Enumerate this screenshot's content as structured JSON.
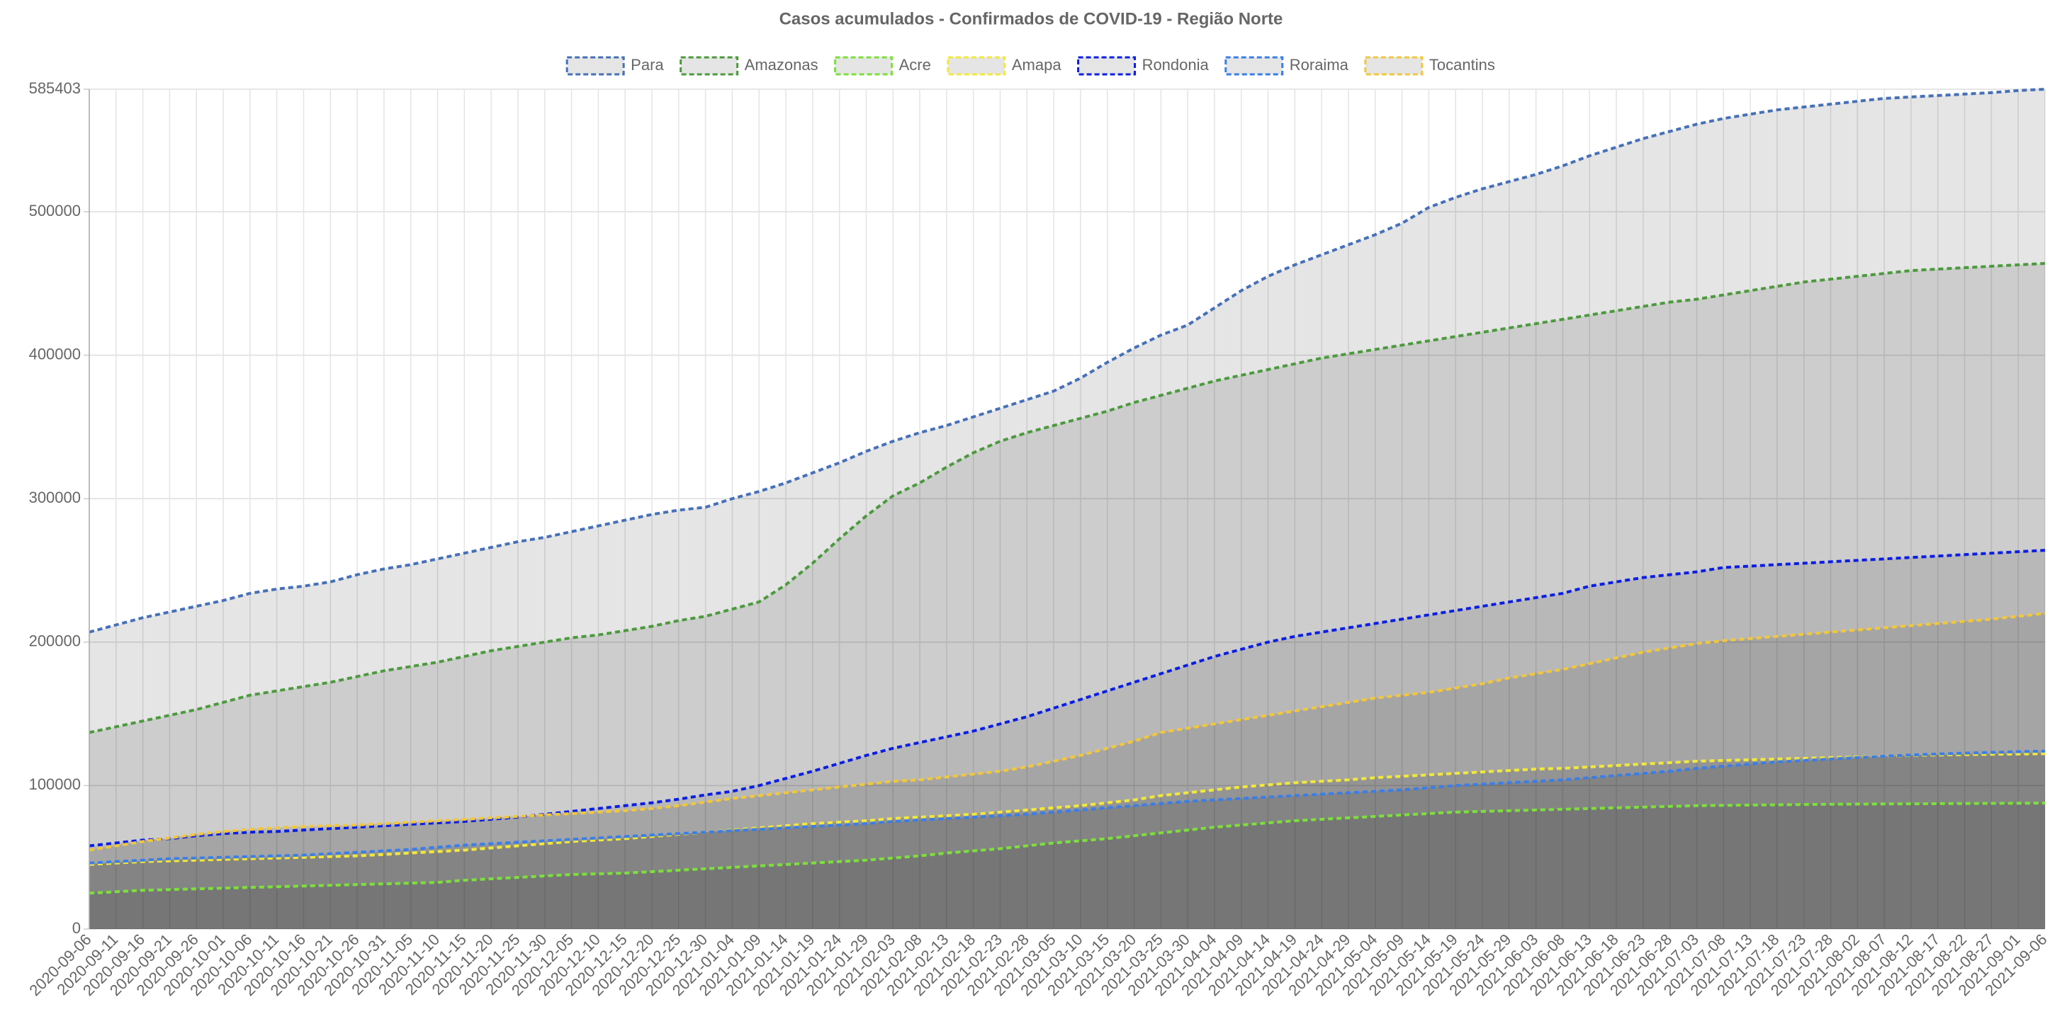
{
  "chart_data": {
    "type": "area",
    "title": "Casos acumulados - Confirmados de COVID-19 - Região Norte",
    "categories": [
      "2020-09-06",
      "2020-09-11",
      "2020-09-16",
      "2020-09-21",
      "2020-09-26",
      "2020-10-01",
      "2020-10-06",
      "2020-10-11",
      "2020-10-16",
      "2020-10-21",
      "2020-10-26",
      "2020-10-31",
      "2020-11-05",
      "2020-11-10",
      "2020-11-15",
      "2020-11-20",
      "2020-11-25",
      "2020-11-30",
      "2020-12-05",
      "2020-12-10",
      "2020-12-15",
      "2020-12-20",
      "2020-12-25",
      "2020-12-30",
      "2021-01-04",
      "2021-01-09",
      "2021-01-14",
      "2021-01-19",
      "2021-01-24",
      "2021-01-29",
      "2021-02-03",
      "2021-02-08",
      "2021-02-13",
      "2021-02-18",
      "2021-02-23",
      "2021-02-28",
      "2021-03-05",
      "2021-03-10",
      "2021-03-15",
      "2021-03-20",
      "2021-03-25",
      "2021-03-30",
      "2021-04-04",
      "2021-04-09",
      "2021-04-14",
      "2021-04-19",
      "2021-04-24",
      "2021-04-29",
      "2021-05-04",
      "2021-05-09",
      "2021-05-14",
      "2021-05-19",
      "2021-05-24",
      "2021-05-29",
      "2021-06-03",
      "2021-06-08",
      "2021-06-13",
      "2021-06-18",
      "2021-06-23",
      "2021-06-28",
      "2021-07-03",
      "2021-07-08",
      "2021-07-13",
      "2021-07-18",
      "2021-07-23",
      "2021-07-28",
      "2021-08-02",
      "2021-08-07",
      "2021-08-12",
      "2021-08-17",
      "2021-08-22",
      "2021-08-27",
      "2021-09-01",
      "2021-09-06"
    ],
    "series": [
      {
        "name": "Para",
        "color": "#4670b8",
        "fill": "rgba(0,0,0,0.1)",
        "values": [
          207000,
          212000,
          217000,
          221000,
          225000,
          229000,
          234000,
          237000,
          239000,
          242000,
          247000,
          251000,
          254000,
          258000,
          262000,
          266000,
          270000,
          273000,
          277000,
          281000,
          285000,
          289000,
          292000,
          294000,
          300000,
          305000,
          311000,
          318000,
          325000,
          333000,
          340000,
          346000,
          351000,
          357000,
          363000,
          369000,
          375000,
          384000,
          395000,
          405000,
          414000,
          421000,
          433000,
          445000,
          455000,
          463000,
          470000,
          477000,
          484000,
          492000,
          503000,
          510000,
          516000,
          521000,
          526000,
          532000,
          539000,
          545000,
          551000,
          556000,
          561000,
          565000,
          568000,
          571000,
          573000,
          575000,
          577000,
          579000,
          580000,
          581000,
          582000,
          583000,
          584500,
          585403
        ]
      },
      {
        "name": "Amazonas",
        "color": "#4b9a3c",
        "fill": "rgba(0,0,0,0.1)",
        "values": [
          137000,
          141000,
          145000,
          149000,
          153000,
          158000,
          163000,
          166000,
          169000,
          172000,
          176000,
          180000,
          183000,
          186000,
          190000,
          194000,
          197000,
          200000,
          203000,
          205000,
          208000,
          211000,
          215000,
          218000,
          223000,
          228000,
          240000,
          255000,
          272000,
          288000,
          302000,
          311000,
          322000,
          332000,
          340000,
          346000,
          351000,
          356000,
          361000,
          367000,
          372000,
          377000,
          382000,
          386000,
          390000,
          394000,
          398000,
          401000,
          404000,
          407000,
          410000,
          413000,
          416000,
          419000,
          422000,
          425000,
          428000,
          431000,
          434000,
          437000,
          439000,
          442000,
          445000,
          448000,
          451000,
          453000,
          455000,
          457000,
          459000,
          460000,
          461000,
          462000,
          463000,
          464000
        ]
      },
      {
        "name": "Acre",
        "color": "#7ce03a",
        "fill": "rgba(0,0,0,0.1)",
        "values": [
          25000,
          26000,
          27000,
          27500,
          28000,
          28500,
          29000,
          29500,
          30000,
          30500,
          31000,
          31500,
          32000,
          32500,
          34000,
          35000,
          36000,
          37000,
          38000,
          38500,
          39000,
          40000,
          41000,
          42000,
          43000,
          44000,
          45000,
          46000,
          47000,
          48000,
          49500,
          51000,
          53000,
          54500,
          56000,
          58000,
          60000,
          61500,
          63000,
          65000,
          67000,
          69000,
          71000,
          72500,
          74000,
          75500,
          76500,
          77500,
          78500,
          79500,
          80500,
          81500,
          82000,
          82500,
          83000,
          83500,
          84000,
          84500,
          85000,
          85500,
          86000,
          86200,
          86400,
          86600,
          86800,
          87000,
          87100,
          87200,
          87300,
          87400,
          87500,
          87600,
          87700,
          87800
        ]
      },
      {
        "name": "Amapa",
        "color": "#f2e83a",
        "fill": "rgba(0,0,0,0.1)",
        "values": [
          45000,
          46000,
          47000,
          47500,
          48000,
          48500,
          49000,
          49500,
          50000,
          50500,
          51000,
          52000,
          53000,
          54000,
          55000,
          56500,
          58000,
          59500,
          61000,
          62000,
          63000,
          64500,
          66000,
          67500,
          69000,
          70500,
          72000,
          73500,
          74500,
          75500,
          77000,
          78000,
          79000,
          80000,
          81500,
          83000,
          84500,
          86000,
          88000,
          90000,
          93000,
          95000,
          97000,
          99000,
          100500,
          102000,
          103000,
          104000,
          105500,
          106500,
          107500,
          108500,
          109500,
          110500,
          111500,
          112000,
          113000,
          114000,
          115000,
          116000,
          117000,
          117500,
          118000,
          118500,
          119000,
          119500,
          120000,
          120500,
          121000,
          121300,
          121600,
          121800,
          122000,
          122200
        ]
      },
      {
        "name": "Rondonia",
        "color": "#0a1ee6",
        "fill": "rgba(0,0,0,0.1)",
        "values": [
          58000,
          60000,
          62000,
          63000,
          65000,
          66500,
          67500,
          68000,
          69000,
          70000,
          71000,
          72000,
          73000,
          74000,
          75000,
          76500,
          78000,
          80000,
          82000,
          84000,
          86000,
          88000,
          90500,
          93500,
          96000,
          100000,
          105000,
          110000,
          115500,
          121000,
          126000,
          130000,
          134000,
          138000,
          143000,
          148000,
          154000,
          160000,
          166000,
          172000,
          178000,
          184000,
          190000,
          195000,
          200000,
          204000,
          207000,
          210000,
          213000,
          216000,
          219000,
          222000,
          225000,
          228000,
          231000,
          234000,
          239000,
          242000,
          245000,
          247000,
          249000,
          252000,
          253000,
          254000,
          255000,
          256000,
          257000,
          258000,
          259000,
          260000,
          261000,
          262000,
          263000,
          264000
        ]
      },
      {
        "name": "Roraima",
        "color": "#3a7ee8",
        "fill": "rgba(0,0,0,0.1)",
        "values": [
          46000,
          47000,
          48000,
          49000,
          49500,
          50000,
          50500,
          51000,
          51500,
          52500,
          53500,
          54500,
          55500,
          57000,
          58500,
          59500,
          60500,
          61500,
          62500,
          63500,
          64500,
          65500,
          66500,
          67500,
          68500,
          69500,
          70500,
          71500,
          72500,
          73500,
          75000,
          76000,
          77000,
          78000,
          79000,
          80000,
          81500,
          83000,
          84500,
          86000,
          87500,
          89000,
          90000,
          91000,
          92000,
          93000,
          94000,
          95000,
          96000,
          97000,
          98500,
          100000,
          101000,
          102000,
          103000,
          104000,
          105500,
          107000,
          108500,
          110000,
          112000,
          113500,
          115000,
          116500,
          117500,
          118500,
          119500,
          120500,
          121300,
          122000,
          122600,
          123100,
          123600,
          124000
        ]
      },
      {
        "name": "Tocantins",
        "color": "#f2c73a",
        "fill": "rgba(0,0,0,0.1)",
        "values": [
          55000,
          58000,
          61000,
          63500,
          66000,
          68000,
          69500,
          70500,
          71500,
          72000,
          72500,
          73500,
          74500,
          75500,
          76500,
          77500,
          78500,
          79500,
          80500,
          81500,
          82500,
          84000,
          86000,
          88500,
          91000,
          93000,
          95000,
          97000,
          99000,
          101000,
          103000,
          104000,
          106000,
          108000,
          110000,
          113000,
          117000,
          121000,
          126000,
          131000,
          137000,
          140000,
          143000,
          146000,
          149000,
          152000,
          155000,
          158000,
          161000,
          163000,
          165000,
          168000,
          171000,
          175000,
          178000,
          181000,
          185000,
          189000,
          193000,
          196000,
          199000,
          201000,
          202500,
          204000,
          205500,
          207000,
          208500,
          210000,
          211500,
          213000,
          214500,
          216000,
          218000,
          220000
        ]
      }
    ],
    "ylim": [
      0,
      585403
    ],
    "yticks": [
      0,
      100000,
      200000,
      300000,
      400000,
      500000,
      585403
    ],
    "grid": true,
    "legend": "top"
  }
}
